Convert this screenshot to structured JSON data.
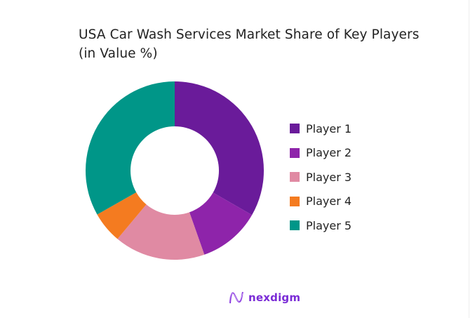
{
  "chart_data": {
    "type": "pie",
    "subtype": "donut",
    "title": "USA Car Wash Services Market Share of Key Players (in Value %)",
    "title_lines": [
      "USA Car Wash Services Market Share of Key Players",
      "(in Value %)"
    ],
    "categories": [
      "Player 1",
      "Player 2",
      "Player 3",
      "Player 4",
      "Player 5"
    ],
    "values": [
      33.3,
      11.3,
      16.5,
      5.7,
      33.2
    ],
    "colors": [
      "#6a1b9a",
      "#8e24aa",
      "#e08aa3",
      "#f47b20",
      "#009688"
    ],
    "legend_position": "right",
    "start_angle": "12 o'clock",
    "direction": "clockwise"
  },
  "branding": {
    "logo_text": "nexdigm",
    "logo_color": "#7a2bd6"
  }
}
